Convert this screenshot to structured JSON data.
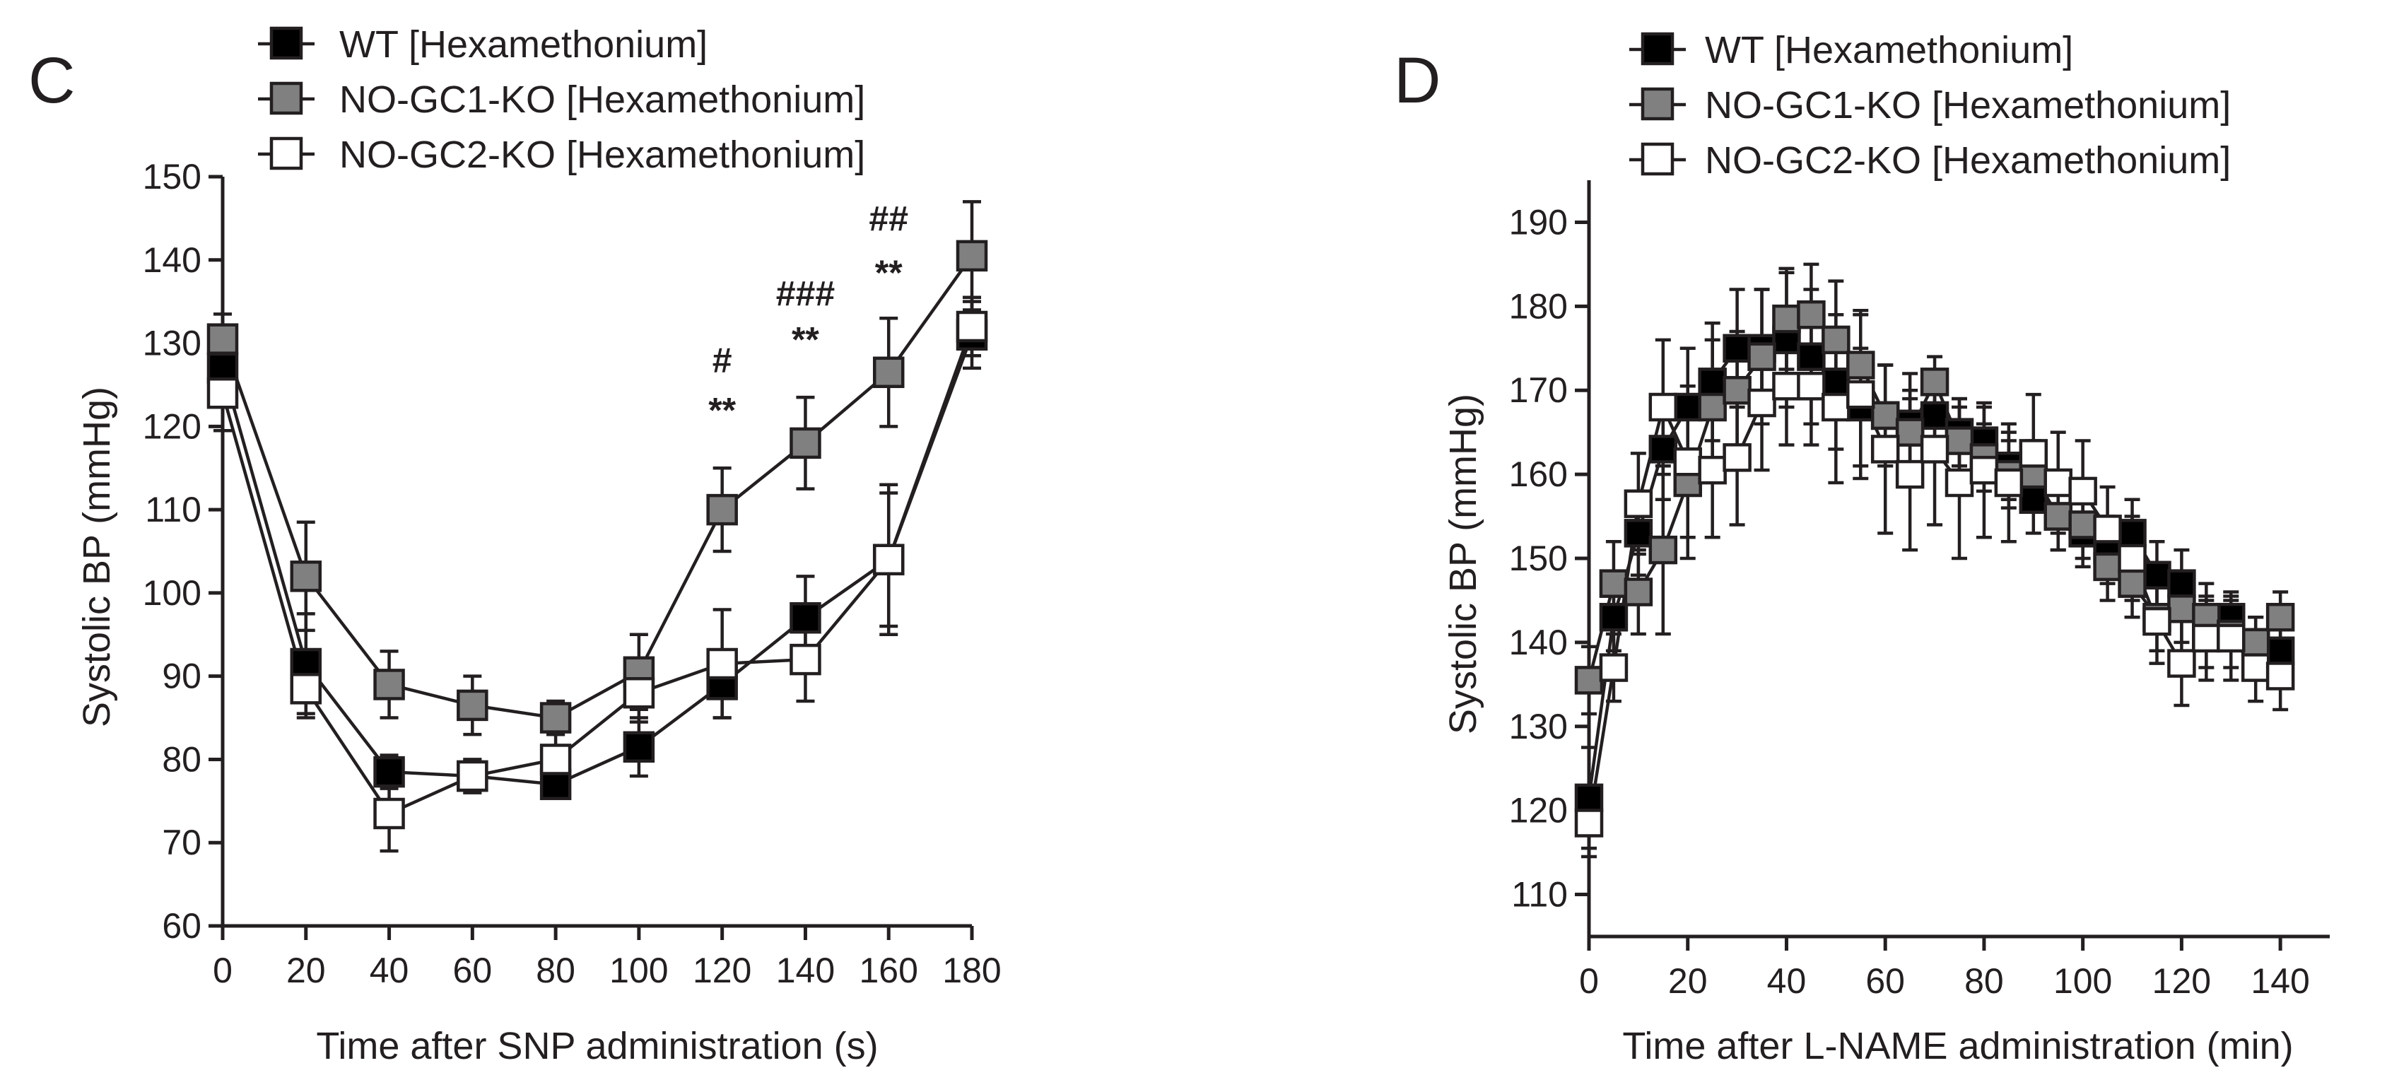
{
  "figure": {
    "panels": [
      {
        "letter": "C",
        "legend": [
          "WT [Hexamethonium]",
          "NO-GC1-KO [Hexamethonium]",
          "NO-GC2-KO [Hexamethonium]"
        ],
        "xlabel": "Time after SNP administration (s)",
        "ylabel": "Systolic BP (mmHg)"
      },
      {
        "letter": "D",
        "legend": [
          "WT [Hexamethonium]",
          "NO-GC1-KO [Hexamethonium]",
          "NO-GC2-KO [Hexamethonium]"
        ],
        "xlabel": "Time after L-NAME administration (min)",
        "ylabel": "Systolic BP (mmHg)"
      }
    ]
  },
  "colors": {
    "wt": "#000000",
    "gc1": "#808080",
    "gc2": "#ffffff",
    "axis": "#231f20"
  },
  "chart_data": [
    {
      "panel": "C",
      "type": "line",
      "title": "",
      "xlabel": "Time after SNP administration (s)",
      "ylabel": "Systolic BP (mmHg)",
      "xlim": [
        0,
        180
      ],
      "ylim": [
        60,
        150
      ],
      "xticks": [
        0,
        20,
        40,
        60,
        80,
        100,
        120,
        140,
        160,
        180
      ],
      "yticks": [
        60,
        70,
        80,
        90,
        100,
        110,
        120,
        130,
        140,
        150
      ],
      "legend_position": "top-left",
      "grid": false,
      "x": [
        0,
        20,
        40,
        60,
        80,
        100,
        120,
        140,
        160,
        180
      ],
      "series": [
        {
          "key": "wt",
          "name": "WT [Hexamethonium]",
          "values": [
            127,
            91.5,
            78.5,
            78,
            77,
            81.5,
            89,
            97,
            104,
            131
          ],
          "errors": [
            4,
            6,
            2,
            2,
            1.5,
            3.5,
            4,
            5,
            8,
            4
          ]
        },
        {
          "key": "gc1",
          "name": "NO-GC1-KO [Hexamethonium]",
          "values": [
            130.5,
            102,
            89,
            86.5,
            85,
            90.5,
            110,
            118,
            126.5,
            140.5
          ],
          "errors": [
            3,
            6.5,
            4,
            3.5,
            2,
            4.5,
            5,
            5.5,
            6.5,
            6.5
          ]
        },
        {
          "key": "gc2",
          "name": "NO-GC2-KO [Hexamethonium]",
          "values": [
            124,
            88.5,
            73.5,
            78,
            80,
            88,
            91.5,
            92,
            104,
            132
          ],
          "errors": [
            4.5,
            3.5,
            4.5,
            2,
            3,
            3.5,
            6.5,
            5,
            9,
            3.5
          ]
        }
      ],
      "annotations": [
        {
          "x": 120,
          "y": 120.5,
          "text": "**"
        },
        {
          "x": 120,
          "y": 126.5,
          "text": "#"
        },
        {
          "x": 140,
          "y": 129,
          "text": "**"
        },
        {
          "x": 140,
          "y": 134.5,
          "text": "###"
        },
        {
          "x": 160,
          "y": 137,
          "text": "**"
        },
        {
          "x": 160,
          "y": 143.5,
          "text": "##"
        }
      ]
    },
    {
      "panel": "D",
      "type": "line",
      "title": "",
      "xlabel": "Time after L-NAME administration (min)",
      "ylabel": "Systolic BP (mmHg)",
      "xlim": [
        0,
        150
      ],
      "ylim": [
        105,
        195
      ],
      "xticks": [
        0,
        20,
        40,
        60,
        80,
        100,
        120,
        140
      ],
      "yticks": [
        110,
        120,
        130,
        140,
        150,
        160,
        170,
        180,
        190
      ],
      "legend_position": "top-left",
      "grid": false,
      "x": [
        0,
        5,
        10,
        15,
        20,
        25,
        30,
        35,
        40,
        45,
        50,
        55,
        60,
        65,
        70,
        75,
        80,
        85,
        90,
        95,
        100,
        105,
        110,
        115,
        120,
        125,
        130,
        135,
        140
      ],
      "series": [
        {
          "key": "wt",
          "name": "WT [Hexamethonium]",
          "values": [
            121.5,
            143,
            153,
            163,
            168,
            171,
            175,
            175,
            176,
            174,
            171,
            168,
            167,
            166,
            167,
            165,
            164,
            161,
            157,
            155,
            153,
            151,
            153,
            148,
            147,
            141,
            143,
            140,
            139
          ],
          "errors": [
            6,
            4,
            5,
            6,
            7,
            7,
            7,
            7,
            8,
            8,
            8,
            7,
            6,
            6,
            5,
            4,
            4,
            4,
            4,
            4,
            4,
            4,
            4,
            4,
            4,
            4,
            3,
            3,
            3
          ]
        },
        {
          "key": "gc1",
          "name": "NO-GC1-KO [Hexamethonium]",
          "values": [
            135.5,
            147,
            146,
            151,
            159,
            168,
            170,
            174,
            178.5,
            179,
            176,
            173,
            167,
            165,
            171,
            164,
            162,
            160,
            160,
            155,
            154,
            149,
            147,
            143,
            144,
            143,
            141,
            140,
            143
          ],
          "errors": [
            4,
            5,
            5,
            10,
            9,
            8,
            7,
            8,
            6,
            6,
            7,
            6,
            6,
            5,
            3,
            5,
            4,
            4,
            4,
            4,
            4,
            4,
            4,
            4,
            4,
            4,
            4,
            3,
            3
          ]
        },
        {
          "key": "gc2",
          "name": "NO-GC2-KO [Hexamethonium]",
          "values": [
            118.5,
            137,
            156.5,
            168,
            161.5,
            160.5,
            162,
            168.5,
            170.5,
            170.5,
            168,
            169.5,
            163,
            160,
            163,
            159,
            160.5,
            159,
            162.5,
            159,
            158,
            153.5,
            150,
            142.5,
            137.5,
            140.5,
            140.5,
            137,
            136
          ],
          "errors": [
            4,
            4,
            6,
            8,
            9,
            8,
            8,
            8,
            7,
            7,
            9,
            10,
            10,
            9,
            9,
            9,
            8,
            7,
            7,
            6,
            6,
            5,
            5,
            5,
            5,
            5,
            5,
            4,
            4
          ]
        }
      ],
      "annotations": []
    }
  ]
}
